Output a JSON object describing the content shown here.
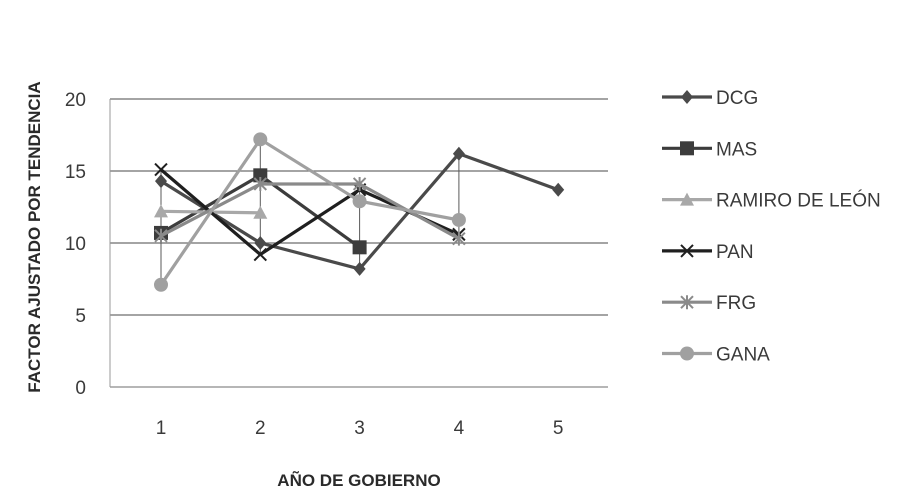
{
  "chart_data": {
    "type": "line",
    "title": "",
    "xlabel": "AÑO DE GOBIERNO",
    "ylabel": "FACTOR AJUSTADO POR TENDENCIA",
    "x": [
      1,
      2,
      3,
      4,
      5
    ],
    "x_tick_labels": [
      "1",
      "2",
      "3",
      "4",
      "5"
    ],
    "y_tick_labels": [
      "0",
      "5",
      "10",
      "15",
      "20"
    ],
    "ylim": [
      0,
      20
    ],
    "grid": "horizontal",
    "legend_position": "right",
    "series": [
      {
        "name": "DCG",
        "values": [
          14.3,
          10.0,
          8.2,
          16.2,
          13.7
        ],
        "color": "#4a4a4a",
        "marker": "diamond"
      },
      {
        "name": "MAS",
        "values": [
          10.7,
          14.7,
          9.7,
          null,
          null
        ],
        "color": "#3c3c3c",
        "marker": "square"
      },
      {
        "name": "RAMIRO DE LEÓN",
        "values": [
          12.2,
          12.1,
          null,
          null,
          null
        ],
        "color": "#a8a8a8",
        "marker": "triangle"
      },
      {
        "name": "PAN",
        "values": [
          15.1,
          9.2,
          13.7,
          10.6,
          null
        ],
        "color": "#1f1f1f",
        "marker": "x"
      },
      {
        "name": "FRG",
        "values": [
          10.5,
          14.1,
          14.1,
          10.3,
          null
        ],
        "color": "#8a8a8a",
        "marker": "star"
      },
      {
        "name": "GANA",
        "values": [
          7.1,
          17.2,
          12.9,
          11.6,
          null
        ],
        "color": "#a0a0a0",
        "marker": "circle"
      }
    ]
  }
}
